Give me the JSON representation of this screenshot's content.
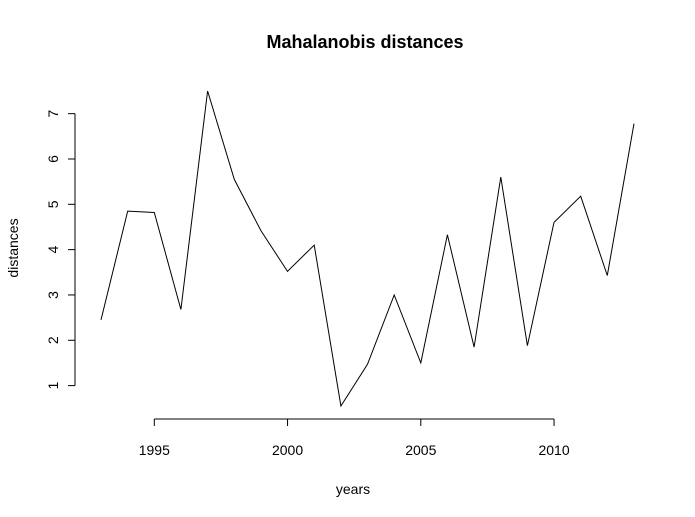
{
  "chart_data": {
    "type": "line",
    "title": "Mahalanobis distances",
    "xlabel": "years",
    "ylabel": "distances",
    "x": [
      1993,
      1994,
      1995,
      1996,
      1997,
      1998,
      1999,
      2000,
      2001,
      2002,
      2003,
      2004,
      2005,
      2006,
      2007,
      2008,
      2009,
      2010,
      2011,
      2012,
      2013
    ],
    "series": [
      {
        "values": [
          2.45,
          4.85,
          4.82,
          2.68,
          7.5,
          5.55,
          4.42,
          3.52,
          4.1,
          0.55,
          1.47,
          3.0,
          1.5,
          4.33,
          1.85,
          5.6,
          1.88,
          4.6,
          5.18,
          3.43,
          6.78
        ]
      }
    ],
    "xlim": [
      1993,
      2013
    ],
    "ylim": [
      0.55,
      7.5
    ],
    "xticks": [
      1995,
      2000,
      2005,
      2010
    ],
    "yticks": [
      1,
      2,
      3,
      4,
      5,
      6,
      7
    ],
    "xtick_labels": [
      "1995",
      "2000",
      "2005",
      "2010"
    ],
    "ytick_labels": [
      "1",
      "2",
      "3",
      "4",
      "5",
      "6",
      "7"
    ],
    "grid": false,
    "legend": "none"
  }
}
